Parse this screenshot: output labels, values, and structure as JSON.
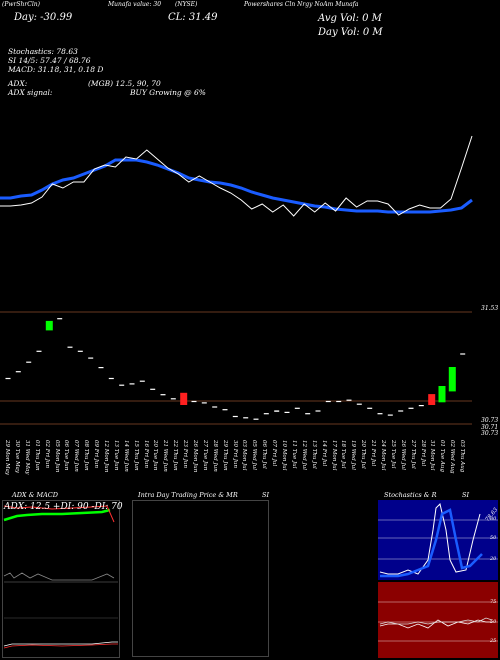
{
  "header": {
    "chart_name": "(PwrShrCln)",
    "links": "Munafa value: 30",
    "symbol": "(NYSE)",
    "company": "Powershares Cln Nrgy NoAm Munafa",
    "close_label": "CL: 31.49",
    "open_label": "Day: -30.99",
    "avg_vol": "Avg Vol: 0  M",
    "day_vol": "Day Vol: 0  M"
  },
  "indicators": {
    "stochastics": "Stochastics: 78.63",
    "rsi": "SI 14/5: 57.47 / 68.76",
    "macd": "MACD: 31.18,  31,  0.18  D",
    "adx": "ADX:",
    "adx_val": "(MGB) 12.5,  90,  70",
    "adx_signal": "ADX  signal:",
    "signal_text": "BUY Growing @ 6%"
  },
  "price_labels": {
    "top": "31.53",
    "p1": "30.73",
    "p2": "30.71",
    "p3": "30.73"
  },
  "dates": [
    "29 Mon May",
    "30 Tue May",
    "31 Wed May",
    "01 Thu Jun",
    "02 Fri Jun",
    "05 Mon Jun",
    "06 Tue Jun",
    "07 Wed Jun",
    "08 Thu Jun",
    "09 Fri Jun",
    "12 Mon Jun",
    "13 Tue Jun",
    "14 Wed Jun",
    "15 Thu Jun",
    "16 Fri Jun",
    "20 Tue Jun",
    "21 Wed Jun",
    "22 Thu Jun",
    "23 Fri Jun",
    "26 Mon Jun",
    "27 Tue Jun",
    "28 Wed Jun",
    "29 Thu Jun",
    "30 Fri Jun",
    "03 Mon Jul",
    "05 Wed Jul",
    "06 Thu Jul",
    "07 Fri Jul",
    "10 Mon Jul",
    "11 Tue Jul",
    "12 Wed Jul",
    "13 Thu Jul",
    "14 Fri Jul",
    "17 Mon Jul",
    "18 Tue Jul",
    "19 Wed Jul",
    "20 Thu Jul",
    "21 Fri Jul",
    "24 Mon Jul",
    "25 Tue Jul",
    "26 Wed Jul",
    "27 Thu Jul",
    "28 Fri Jul",
    "31 Mon Jul",
    "01 Tue Aug",
    "02 Wed Aug",
    "03 Thu Aug"
  ],
  "panels": {
    "adx_macd": "ADX  &  MACD",
    "adx_line": "ADX: 12.5 +DI: 90  -DI: 70",
    "intraday": "Intra  Day  Trading  Price  &  MR",
    "si": "SI",
    "stoch_title": "Stochastics  &  R",
    "stoch_si": "SI",
    "stoch_levels": [
      "80",
      "50",
      "20"
    ],
    "rsi_levels": [
      "75",
      "50",
      "25"
    ],
    "stoch_val": "78.63"
  },
  "colors": {
    "ma_line": "#1a5cff",
    "up": "#00ff00",
    "down": "#ff2020",
    "grid": "#8a4a2a",
    "rsi_bg": "#8b0000",
    "stoch_bg": "#00008b"
  },
  "chart_data": {
    "type": "line",
    "candles": [
      {
        "date": "29 Mon May",
        "open": 31.1,
        "close": 31.1
      },
      {
        "date": "30 Tue May",
        "open": 31.15,
        "close": 31.15
      },
      {
        "date": "31 Wed May",
        "open": 31.22,
        "close": 31.22
      },
      {
        "date": "01 Thu Jun",
        "open": 31.3,
        "close": 31.3
      },
      {
        "date": "02 Fri Jun",
        "open": 31.45,
        "close": 31.52
      },
      {
        "date": "05 Mon Jun",
        "open": 31.54,
        "close": 31.54
      },
      {
        "date": "06 Tue Jun",
        "open": 31.33,
        "close": 31.33
      },
      {
        "date": "07 Wed Jun",
        "open": 31.3,
        "close": 31.3
      },
      {
        "date": "08 Thu Jun",
        "open": 31.25,
        "close": 31.25
      },
      {
        "date": "09 Fri Jun",
        "open": 31.18,
        "close": 31.18
      },
      {
        "date": "12 Mon Jun",
        "open": 31.1,
        "close": 31.1
      },
      {
        "date": "13 Tue Jun",
        "open": 31.05,
        "close": 31.05
      },
      {
        "date": "14 Wed Jun",
        "open": 31.06,
        "close": 31.06
      },
      {
        "date": "15 Thu Jun",
        "open": 31.08,
        "close": 31.08
      },
      {
        "date": "16 Fri Jun",
        "open": 31.02,
        "close": 31.02
      },
      {
        "date": "20 Tue Jun",
        "open": 30.98,
        "close": 30.98
      },
      {
        "date": "21 Wed Jun",
        "open": 30.95,
        "close": 30.95
      },
      {
        "date": "22 Thu Jun",
        "open": 30.99,
        "close": 30.9
      },
      {
        "date": "23 Fri Jun",
        "open": 30.93,
        "close": 30.93
      },
      {
        "date": "26 Mon Jun",
        "open": 30.92,
        "close": 30.92
      },
      {
        "date": "27 Tue Jun",
        "open": 30.89,
        "close": 30.89
      },
      {
        "date": "28 Wed Jun",
        "open": 30.87,
        "close": 30.87
      },
      {
        "date": "29 Thu Jun",
        "open": 30.82,
        "close": 30.82
      },
      {
        "date": "30 Fri Jun",
        "open": 30.81,
        "close": 30.81
      },
      {
        "date": "03 Mon Jul",
        "open": 30.8,
        "close": 30.8
      },
      {
        "date": "05 Wed Jul",
        "open": 30.84,
        "close": 30.84
      },
      {
        "date": "06 Thu Jul",
        "open": 30.85,
        "close": 30.86
      },
      {
        "date": "07 Fri Jul",
        "open": 30.85,
        "close": 30.85
      },
      {
        "date": "10 Mon Jul",
        "open": 30.88,
        "close": 30.88
      },
      {
        "date": "11 Tue Jul",
        "open": 30.84,
        "close": 30.84
      },
      {
        "date": "12 Wed Jul",
        "open": 30.86,
        "close": 30.86
      },
      {
        "date": "13 Thu Jul",
        "open": 30.93,
        "close": 30.93
      },
      {
        "date": "14 Fri Jul",
        "open": 30.93,
        "close": 30.93
      },
      {
        "date": "17 Mon Jul",
        "open": 30.94,
        "close": 30.94
      },
      {
        "date": "18 Tue Jul",
        "open": 30.91,
        "close": 30.91
      },
      {
        "date": "19 Wed Jul",
        "open": 30.88,
        "close": 30.88
      },
      {
        "date": "20 Thu Jul",
        "open": 30.84,
        "close": 30.84
      },
      {
        "date": "21 Fri Jul",
        "open": 30.83,
        "close": 30.83
      },
      {
        "date": "24 Mon Jul",
        "open": 30.86,
        "close": 30.86
      },
      {
        "date": "25 Tue Jul",
        "open": 30.88,
        "close": 30.88
      },
      {
        "date": "26 Wed Jul",
        "open": 30.9,
        "close": 30.9
      },
      {
        "date": "27 Thu Jul",
        "open": 30.98,
        "close": 30.9
      },
      {
        "date": "28 Fri Jul",
        "open": 30.92,
        "close": 31.04
      },
      {
        "date": "31 Mon Jul",
        "open": 31.0,
        "close": 31.18
      },
      {
        "date": "01 Tue Aug",
        "open": 31.28,
        "close": 31.28
      }
    ],
    "price_line": [
      34,
      34,
      35,
      37,
      43,
      56,
      52,
      58,
      58,
      71,
      75,
      73,
      83,
      81,
      90,
      81,
      72,
      66,
      58,
      64,
      58,
      52,
      47,
      40,
      31,
      36,
      28,
      35,
      24,
      36,
      28,
      37,
      29,
      42,
      33,
      39,
      39,
      36,
      25,
      31,
      35,
      32,
      32,
      41,
      72,
      104
    ],
    "ma_line": [
      42,
      42,
      44,
      45,
      50,
      56,
      60,
      62,
      66,
      70,
      74,
      80,
      80,
      80,
      78,
      75,
      71,
      67,
      62,
      60,
      58,
      57,
      55,
      52,
      48,
      45,
      42,
      40,
      38,
      36,
      34,
      33,
      31,
      30,
      29,
      29,
      29,
      28,
      28,
      28,
      28,
      28,
      29,
      30,
      32,
      40
    ]
  }
}
